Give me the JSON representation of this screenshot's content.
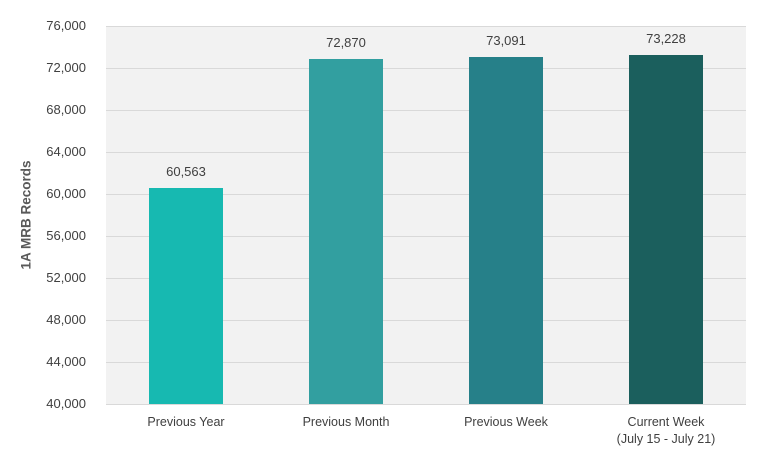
{
  "chart_data": {
    "type": "bar",
    "title": "",
    "xlabel": "",
    "ylabel": "1A MRB Records",
    "ylim": [
      40000,
      76000
    ],
    "yticks": [
      40000,
      44000,
      48000,
      52000,
      56000,
      60000,
      64000,
      68000,
      72000,
      76000
    ],
    "ytick_labels": [
      "40,000",
      "44,000",
      "48,000",
      "52,000",
      "56,000",
      "60,000",
      "64,000",
      "68,000",
      "72,000",
      "76,000"
    ],
    "grid": true,
    "legend": null,
    "categories": [
      "Previous Year",
      "Previous Month",
      "Previous Week",
      "Current Week (July 15 - July 21)"
    ],
    "category_lines": [
      [
        "Previous Year"
      ],
      [
        "Previous Month"
      ],
      [
        "Previous Week"
      ],
      [
        "Current Week",
        "(July 15 - July 21)"
      ]
    ],
    "values": [
      60563,
      72870,
      73091,
      73228
    ],
    "value_labels": [
      "60,563",
      "72,870",
      "73,091",
      "73,228"
    ],
    "colors": [
      "#17b9b1",
      "#329fa0",
      "#268089",
      "#1b5f5d"
    ]
  },
  "colors": {
    "plot_background": "#f2f2f2",
    "gridline": "#d9d9d9",
    "text": "#404040"
  }
}
